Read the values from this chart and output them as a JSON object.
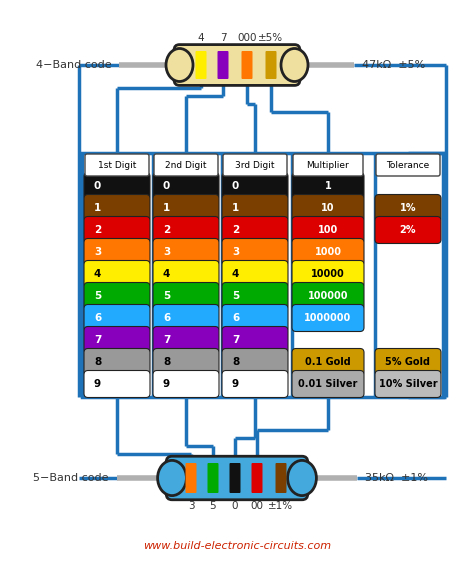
{
  "website": "www.build-electronic-circuits.com",
  "bg_color": "#ffffff",
  "blue": "#1e72b8",
  "gray_lead": "#b0b0b0",
  "colors_list": [
    {
      "hex": "#111111",
      "text": "white"
    },
    {
      "hex": "#7b3f00",
      "text": "white"
    },
    {
      "hex": "#dd0000",
      "text": "white"
    },
    {
      "hex": "#ff7700",
      "text": "white"
    },
    {
      "hex": "#ffee00",
      "text": "black"
    },
    {
      "hex": "#00aa00",
      "text": "white"
    },
    {
      "hex": "#22aaff",
      "text": "white"
    },
    {
      "hex": "#8800bb",
      "text": "white"
    },
    {
      "hex": "#999999",
      "text": "black"
    },
    {
      "hex": "#ffffff",
      "text": "black"
    }
  ],
  "digits": [
    "0",
    "1",
    "2",
    "3",
    "4",
    "5",
    "6",
    "7",
    "8",
    "9"
  ],
  "multipliers": [
    "1",
    "10",
    "100",
    "1000",
    "10000",
    "100000",
    "1000000",
    "",
    "0.1 Gold",
    "0.01 Silver"
  ],
  "mult_colors": [
    "#111111",
    "#7b3f00",
    "#dd0000",
    "#ff7700",
    "#ffee00",
    "#00aa00",
    "#22aaff",
    "",
    "#cc9900",
    "#aaaaaa"
  ],
  "mult_texts": [
    "white",
    "white",
    "white",
    "white",
    "black",
    "white",
    "white",
    "",
    "black",
    "black"
  ],
  "tolerances": [
    "",
    "1%",
    "2%",
    "",
    "",
    "",
    "",
    "",
    "5% Gold",
    "10% Silver"
  ],
  "tol_colors": [
    "",
    "#7b3f00",
    "#dd0000",
    "",
    "",
    "",
    "",
    "",
    "#cc9900",
    "#bbbbbb"
  ],
  "tol_texts": [
    "",
    "white",
    "white",
    "",
    "",
    "",
    "",
    "",
    "black",
    "black"
  ],
  "col_headers": [
    "1st Digit",
    "2nd Digit",
    "3rd Digit",
    "Multiplier",
    "Tolerance"
  ],
  "res4_body": "#f0e0a0",
  "res4_bands": [
    {
      "color": "#ffee00"
    },
    {
      "color": "#8800bb"
    },
    {
      "color": "#ff7700"
    },
    {
      "color": "#cc9900"
    }
  ],
  "res4_above": [
    "4",
    "7",
    "000",
    "±5%"
  ],
  "res4_right": "47kΩ  ±5%",
  "res4_left": "4−Band code",
  "res5_body": "#44aadd",
  "res5_bands": [
    {
      "color": "#ff7700"
    },
    {
      "color": "#00aa00"
    },
    {
      "color": "#111111"
    },
    {
      "color": "#dd0000"
    },
    {
      "color": "#7b3f00"
    }
  ],
  "res5_below": [
    "3",
    "5",
    "0",
    "00",
    "±1%"
  ],
  "res5_right": "35kΩ  ±1%",
  "res5_left": "5−Band code"
}
